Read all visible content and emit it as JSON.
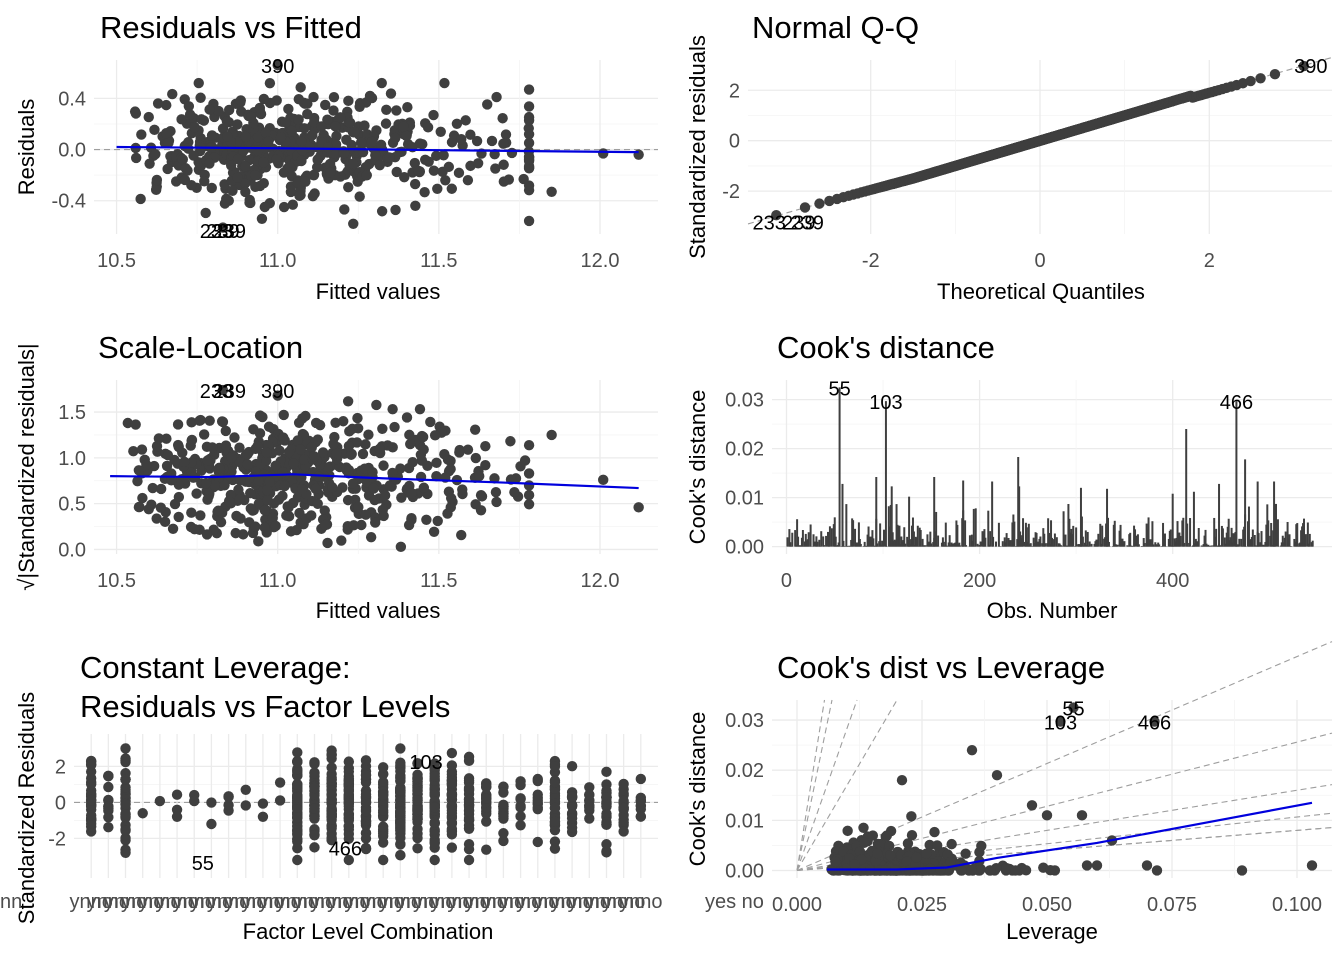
{
  "chart_data": [
    {
      "id": "p1",
      "type": "scatter",
      "title": "Residuals vs Fitted",
      "xlabel": "Fitted values",
      "ylabel": "Residuals",
      "xlim": [
        10.43,
        12.18
      ],
      "ylim": [
        -0.66,
        0.7
      ],
      "xticks": [
        10.5,
        11.0,
        11.5,
        12.0
      ],
      "xtick_labels": [
        "10.5",
        "11.0",
        "11.5",
        "12.0"
      ],
      "yticks": [
        -0.4,
        0.0,
        0.4
      ],
      "ytick_labels": [
        "-0.4",
        "0.0",
        "0.4"
      ],
      "hline": 0,
      "annotations": [
        {
          "text": "390",
          "x": 11.0,
          "y": 0.66
        },
        {
          "text": "239",
          "x": 10.83,
          "y": -0.63
        },
        {
          "text": "233",
          "x": 10.81,
          "y": -0.63
        },
        {
          "text": "239",
          "x": 10.85,
          "y": -0.63
        }
      ],
      "smooth": {
        "x": [
          10.5,
          11.0,
          11.5,
          12.12
        ],
        "y": [
          0.02,
          0.01,
          -0.005,
          -0.02
        ]
      },
      "points_note": "cloud of ~545 observations; values approximated"
    },
    {
      "id": "p2",
      "type": "scatter",
      "title": "Normal Q-Q",
      "xlabel": "Theoretical Quantiles",
      "ylabel": "Standardized residuals",
      "xlim": [
        -3.45,
        3.45
      ],
      "ylim": [
        -3.7,
        3.2
      ],
      "xticks": [
        -2,
        0,
        2
      ],
      "xtick_labels": [
        "-2",
        "0",
        "2"
      ],
      "yticks": [
        -2,
        0,
        2
      ],
      "ytick_labels": [
        "-2",
        "0",
        "2"
      ],
      "annotations": [
        {
          "text": "390",
          "x": 3.2,
          "y": 3.0
        },
        {
          "text": "233",
          "x": -3.2,
          "y": -3.2
        },
        {
          "text": "239",
          "x": -2.85,
          "y": -3.2
        },
        {
          "text": "239",
          "x": -2.75,
          "y": -3.2
        }
      ]
    },
    {
      "id": "p3",
      "type": "scatter",
      "title": "Scale-Location",
      "xlabel": "Fitted values",
      "ylabel": "√|Standardized residuals|",
      "xlim": [
        10.43,
        12.18
      ],
      "ylim": [
        -0.05,
        1.85
      ],
      "xticks": [
        10.5,
        11.0,
        11.5,
        12.0
      ],
      "xtick_labels": [
        "10.5",
        "11.0",
        "11.5",
        "12.0"
      ],
      "yticks": [
        0.0,
        0.5,
        1.0,
        1.5
      ],
      "ytick_labels": [
        "0.0",
        "0.5",
        "1.0",
        "1.5"
      ],
      "annotations": [
        {
          "text": "233",
          "x": 10.81,
          "y": 1.74
        },
        {
          "text": "239",
          "x": 10.85,
          "y": 1.74
        },
        {
          "text": "390",
          "x": 11.0,
          "y": 1.74
        }
      ],
      "smooth": {
        "x": [
          10.48,
          10.8,
          11.05,
          11.3,
          11.7,
          12.12
        ],
        "y": [
          0.8,
          0.79,
          0.82,
          0.78,
          0.73,
          0.67
        ]
      }
    },
    {
      "id": "p4",
      "type": "bar",
      "title": "Cook's distance",
      "xlabel": "Obs. Number",
      "ylabel": "Cook's distance",
      "xlim": [
        -15,
        565
      ],
      "ylim": [
        -0.0015,
        0.034
      ],
      "xticks": [
        0,
        200,
        400
      ],
      "xtick_labels": [
        "0",
        "200",
        "400"
      ],
      "yticks": [
        0.0,
        0.01,
        0.02,
        0.03
      ],
      "ytick_labels": [
        "0.00",
        "0.01",
        "0.02",
        "0.03"
      ],
      "highlighted": [
        {
          "obs": 55,
          "value": 0.0325,
          "label": "55"
        },
        {
          "obs": 103,
          "value": 0.0297,
          "label": "103"
        },
        {
          "obs": 466,
          "value": 0.0297,
          "label": "466"
        }
      ],
      "other_tall_bars": [
        [
          58,
          0.0128
        ],
        [
          93,
          0.0142
        ],
        [
          109,
          0.0123
        ],
        [
          127,
          0.0102
        ],
        [
          153,
          0.0142
        ],
        [
          183,
          0.0135
        ],
        [
          213,
          0.0133
        ],
        [
          240,
          0.0183
        ],
        [
          241,
          0.0123
        ],
        [
          305,
          0.012
        ],
        [
          332,
          0.0118
        ],
        [
          400,
          0.0108
        ],
        [
          414,
          0.024
        ],
        [
          422,
          0.0112
        ],
        [
          448,
          0.0128
        ],
        [
          475,
          0.0178
        ],
        [
          488,
          0.0133
        ],
        [
          505,
          0.0133
        ]
      ]
    },
    {
      "id": "p5",
      "type": "scatter",
      "title": "Constant Leverage:",
      "subtitle": "Residuals vs Factor Levels",
      "xlabel": "Factor Level Combination",
      "ylabel": "Standardized Residuals",
      "xlim": [
        0,
        34
      ],
      "ylim": [
        -4.2,
        3.8
      ],
      "yticks": [
        -2,
        0,
        2
      ],
      "ytick_labels": [
        "-2",
        "0",
        "2"
      ],
      "hline": 0,
      "xtick_label_text": "Standardized Residuals",
      "annotations": [
        {
          "text": "103",
          "x": 20.5,
          "y": 2.3
        },
        {
          "text": "55",
          "x": 7.5,
          "y": -3.3
        },
        {
          "text": "466",
          "x": 15.8,
          "y": -2.5
        }
      ]
    },
    {
      "id": "p6",
      "type": "scatter",
      "title": "Cook's dist vs Leverage",
      "xlabel": "Leverage",
      "ylabel": "Cook's distance",
      "xlim": [
        -0.005,
        0.107
      ],
      "ylim": [
        -0.0015,
        0.034
      ],
      "xticks": [
        0.0,
        0.025,
        0.05,
        0.075,
        0.1
      ],
      "xtick_labels": [
        "0.000",
        "0.025",
        "0.050",
        "0.075",
        "0.100"
      ],
      "yticks": [
        0.0,
        0.01,
        0.02,
        0.03
      ],
      "ytick_labels": [
        "0.00",
        "0.01",
        "0.02",
        "0.03"
      ],
      "annotations": [
        {
          "text": "55",
          "x": 0.0553,
          "y": 0.0325
        },
        {
          "text": "103",
          "x": 0.0527,
          "y": 0.0297
        },
        {
          "text": "466",
          "x": 0.0715,
          "y": 0.0297
        }
      ],
      "highlighted_points": [
        {
          "x": 0.0553,
          "y": 0.0325
        },
        {
          "x": 0.0527,
          "y": 0.0297
        },
        {
          "x": 0.0715,
          "y": 0.0297
        }
      ],
      "smooth": {
        "x": [
          0.006,
          0.02,
          0.03,
          0.04,
          0.06,
          0.08,
          0.103
        ],
        "y": [
          0.0002,
          0.0002,
          0.0006,
          0.0025,
          0.0055,
          0.0092,
          0.0135
        ]
      }
    }
  ]
}
